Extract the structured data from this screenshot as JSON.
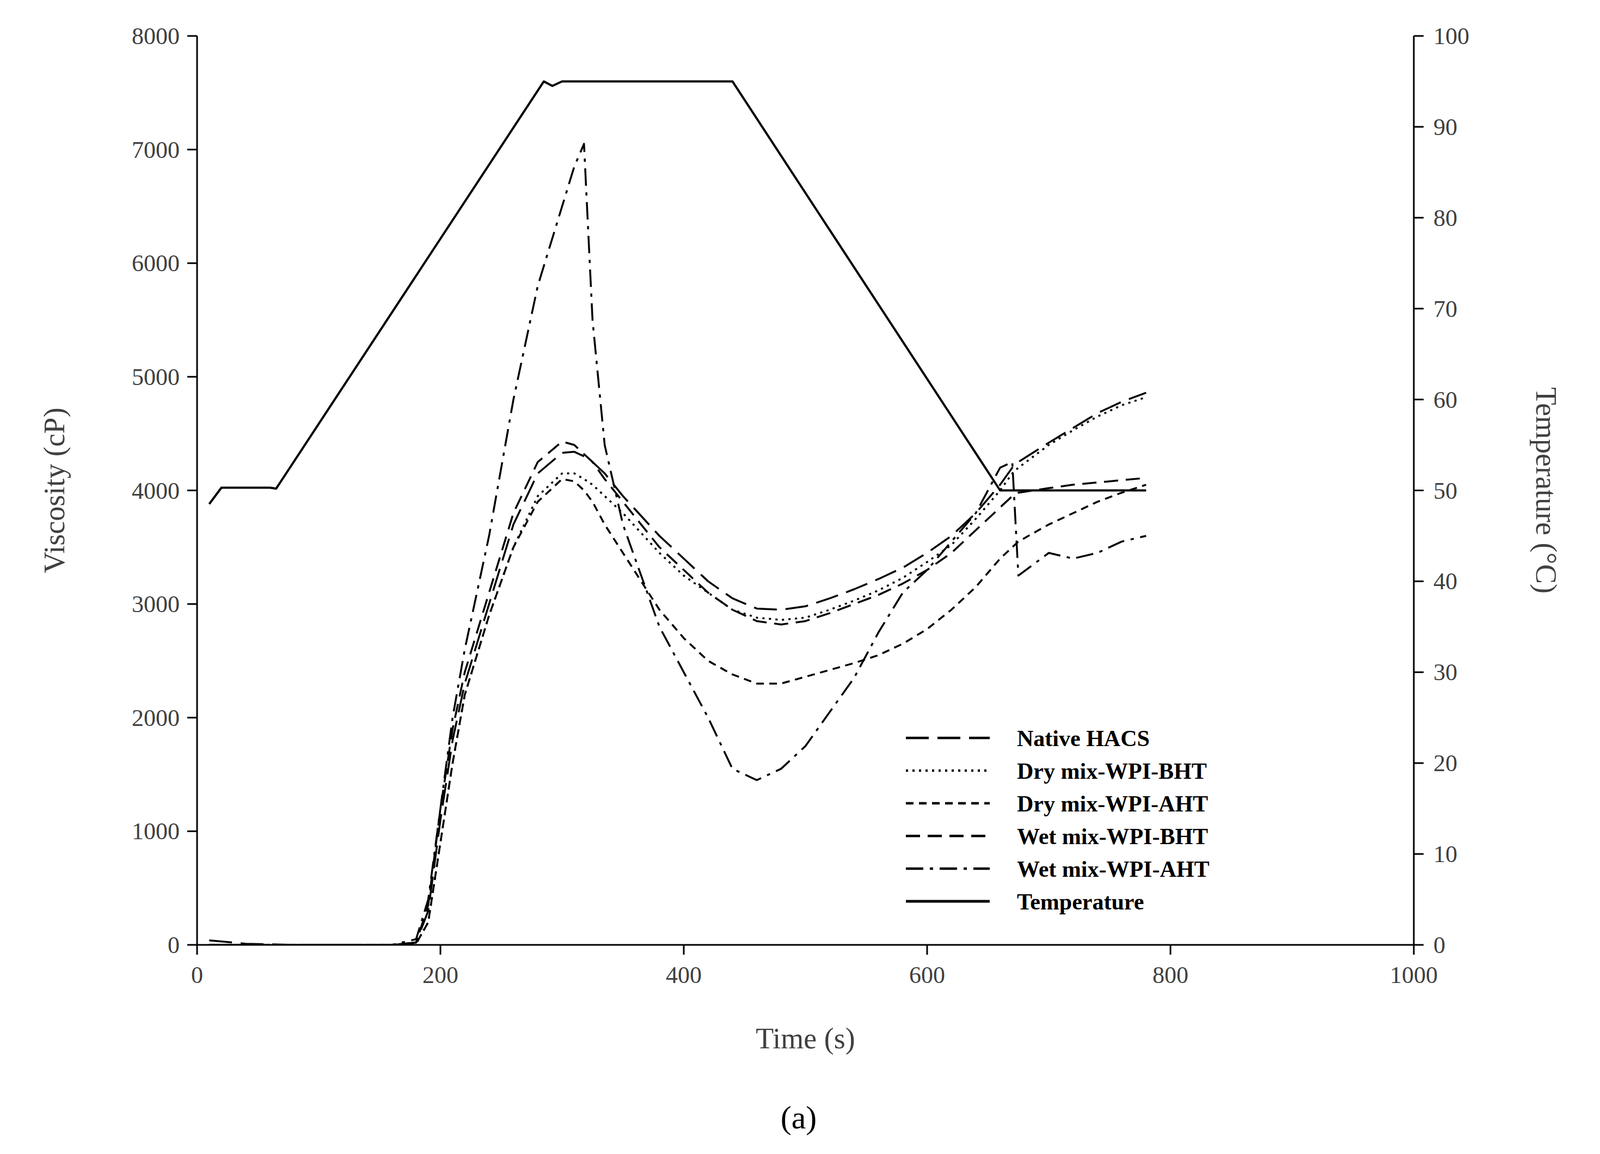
{
  "chart_data": {
    "type": "line",
    "caption": "(a)",
    "x_label": "Time (s)",
    "y_label": "Viscosity (cP)",
    "y2_label": "Temperature (°C)",
    "xlim": [
      0,
      1000
    ],
    "xticks": [
      0,
      200,
      400,
      600,
      800,
      1000
    ],
    "ylim": [
      0,
      8000
    ],
    "yticks": [
      0,
      1000,
      2000,
      3000,
      4000,
      5000,
      6000,
      7000,
      8000
    ],
    "y2lim": [
      0,
      100
    ],
    "y2ticks": [
      0,
      10,
      20,
      30,
      40,
      50,
      60,
      70,
      80,
      90,
      100
    ],
    "grid": false,
    "legend": "lower right",
    "x": [
      10,
      40,
      80,
      120,
      160,
      180,
      190,
      200,
      210,
      220,
      240,
      260,
      280,
      300,
      310,
      318,
      325,
      335,
      350,
      380,
      400,
      420,
      440,
      460,
      480,
      500,
      520,
      540,
      560,
      580,
      600,
      620,
      640,
      660,
      670,
      675,
      700,
      720,
      740,
      760,
      780
    ],
    "series": [
      {
        "name": "Native HACS",
        "color": "#000000",
        "line_style": "long-dash",
        "values": [
          40,
          10,
          0,
          0,
          0,
          20,
          300,
          1100,
          1800,
          2300,
          3000,
          3700,
          4150,
          4330,
          4340,
          4300,
          4250,
          4150,
          3950,
          3600,
          3400,
          3200,
          3050,
          2960,
          2950,
          2980,
          3050,
          3130,
          3220,
          3320,
          3450,
          3600,
          3800,
          4050,
          4200,
          4250,
          4420,
          4550,
          4680,
          4780,
          4860
        ]
      },
      {
        "name": "Dry mix-WPI-BHT",
        "color": "#000000",
        "line_style": "dotted",
        "values": [
          0,
          0,
          0,
          0,
          0,
          10,
          200,
          900,
          1600,
          2200,
          2900,
          3500,
          3950,
          4150,
          4150,
          4100,
          4050,
          3950,
          3800,
          3450,
          3250,
          3100,
          2950,
          2880,
          2860,
          2880,
          2950,
          3030,
          3120,
          3230,
          3370,
          3520,
          3750,
          4000,
          4150,
          4200,
          4400,
          4530,
          4650,
          4750,
          4820
        ]
      },
      {
        "name": "Dry mix-WPI-AHT",
        "color": "#000000",
        "line_style": "short-dash",
        "values": [
          0,
          0,
          0,
          0,
          0,
          10,
          200,
          900,
          1600,
          2200,
          2900,
          3500,
          3900,
          4100,
          4080,
          4000,
          3900,
          3700,
          3450,
          2950,
          2700,
          2500,
          2380,
          2300,
          2300,
          2360,
          2420,
          2480,
          2550,
          2650,
          2780,
          2950,
          3150,
          3400,
          3500,
          3550,
          3700,
          3800,
          3900,
          3980,
          4050
        ]
      },
      {
        "name": "Wet mix-WPI-BHT",
        "color": "#000000",
        "line_style": "dashed",
        "values": [
          0,
          0,
          0,
          0,
          0,
          20,
          350,
          1200,
          1900,
          2400,
          3100,
          3800,
          4250,
          4430,
          4400,
          4320,
          4250,
          4100,
          3900,
          3500,
          3300,
          3100,
          2950,
          2850,
          2820,
          2850,
          2920,
          3000,
          3080,
          3180,
          3300,
          3450,
          3650,
          3850,
          3950,
          3980,
          4020,
          4050,
          4070,
          4090,
          4110
        ]
      },
      {
        "name": "Wet mix-WPI-AHT",
        "color": "#000000",
        "line_style": "dash-dot",
        "values": [
          0,
          0,
          0,
          0,
          0,
          50,
          400,
          1200,
          2000,
          2600,
          3600,
          4800,
          5800,
          6500,
          6850,
          7050,
          5500,
          4400,
          3700,
          2800,
          2400,
          2000,
          1550,
          1450,
          1550,
          1750,
          2050,
          2350,
          2750,
          3100,
          3300,
          3550,
          3800,
          4200,
          4250,
          3250,
          3450,
          3400,
          3450,
          3550,
          3600
        ]
      },
      {
        "name": "Temperature",
        "color": "#000000",
        "line_style": "solid",
        "axis": "y2",
        "x": [
          10,
          20,
          60,
          65,
          285,
          292,
          300,
          440,
          660,
          780
        ],
        "values": [
          48.5,
          50.3,
          50.3,
          50.2,
          95,
          94.5,
          95,
          95,
          50,
          50
        ]
      }
    ]
  }
}
